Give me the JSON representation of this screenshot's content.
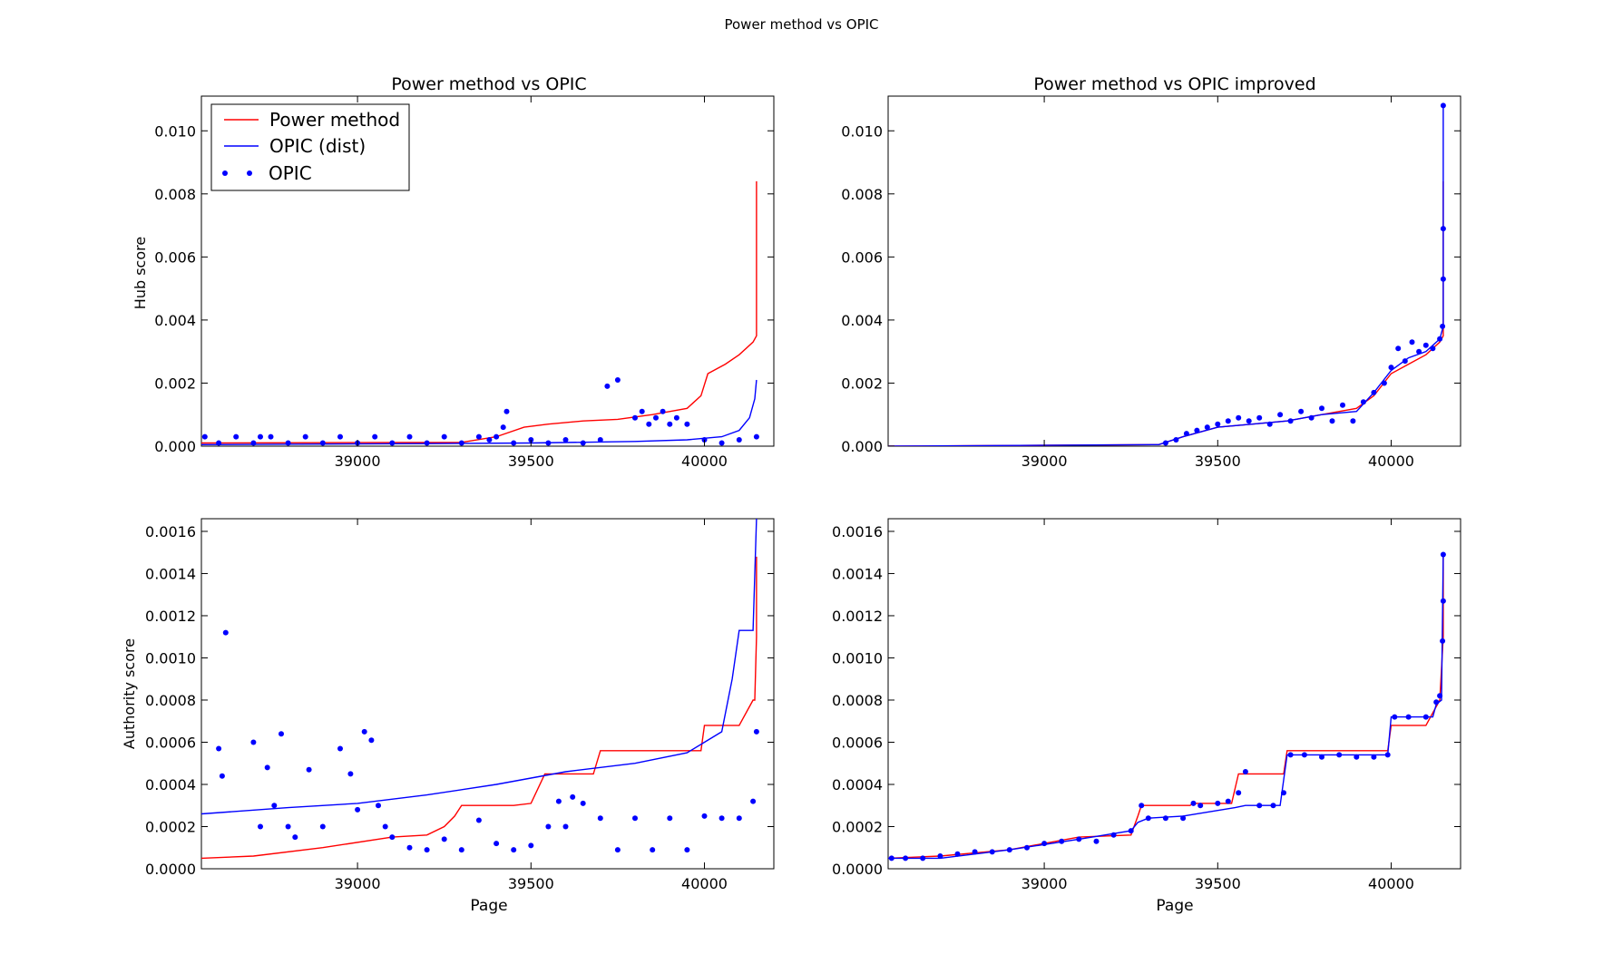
{
  "figure": {
    "suptitle": "Power method vs OPIC"
  },
  "colors": {
    "power_method": "#ff0000",
    "opic": "#0000ff"
  },
  "chart_data": [
    {
      "type": "line",
      "title": "Power method vs OPIC",
      "xlabel": "",
      "ylabel": "Hub score",
      "xlim": [
        38550,
        40200
      ],
      "ylim": [
        0,
        0.0111
      ],
      "xticks": [
        39000,
        39500,
        40000
      ],
      "yticks": [
        0.0,
        0.002,
        0.004,
        0.006,
        0.008,
        0.01
      ],
      "ytick_labels": [
        "0.000",
        "0.002",
        "0.004",
        "0.006",
        "0.008",
        "0.010"
      ],
      "legend": {
        "position": "top-left",
        "entries": [
          "Power method",
          "OPIC (dist)",
          "OPIC"
        ]
      },
      "series": [
        {
          "name": "Power method",
          "style": "line",
          "color": "#ff0000",
          "x": [
            38550,
            39300,
            39400,
            39480,
            39550,
            39650,
            39750,
            39850,
            39950,
            39990,
            40010,
            40060,
            40100,
            40140,
            40150,
            40150
          ],
          "y": [
            0.0001,
            0.00012,
            0.0003,
            0.0006,
            0.0007,
            0.0008,
            0.00085,
            0.001,
            0.0012,
            0.0016,
            0.0023,
            0.0026,
            0.0029,
            0.0033,
            0.0035,
            0.0084
          ]
        },
        {
          "name": "OPIC (dist)",
          "style": "line",
          "color": "#0000ff",
          "x": [
            38550,
            39200,
            39500,
            39800,
            39950,
            40050,
            40100,
            40130,
            40145,
            40150
          ],
          "y": [
            5e-05,
            8e-05,
            0.0001,
            0.00015,
            0.0002,
            0.0003,
            0.0005,
            0.0009,
            0.0015,
            0.0021
          ]
        },
        {
          "name": "OPIC",
          "style": "points",
          "color": "#0000ff",
          "x": [
            38560,
            38600,
            38650,
            38700,
            38720,
            38750,
            38800,
            38850,
            38900,
            38950,
            39000,
            39050,
            39100,
            39150,
            39200,
            39250,
            39300,
            39350,
            39380,
            39400,
            39420,
            39430,
            39450,
            39500,
            39550,
            39600,
            39650,
            39700,
            39720,
            39750,
            39800,
            39820,
            39840,
            39860,
            39880,
            39900,
            39920,
            39950,
            40000,
            40050,
            40100,
            40150
          ],
          "y": [
            0.0003,
            0.0001,
            0.0003,
            0.0001,
            0.0003,
            0.0003,
            0.0001,
            0.0003,
            0.0001,
            0.0003,
            0.0001,
            0.0003,
            0.0001,
            0.0003,
            0.0001,
            0.0003,
            0.0001,
            0.0003,
            0.0002,
            0.0003,
            0.0006,
            0.0011,
            0.0001,
            0.0002,
            0.0001,
            0.0002,
            0.0001,
            0.0002,
            0.0019,
            0.0021,
            0.0009,
            0.0011,
            0.0007,
            0.0009,
            0.0011,
            0.0007,
            0.0009,
            0.0007,
            0.0002,
            0.0001,
            0.0002,
            0.0003
          ]
        }
      ]
    },
    {
      "type": "line",
      "title": "Power method vs OPIC improved",
      "xlabel": "",
      "ylabel": "",
      "xlim": [
        38550,
        40200
      ],
      "ylim": [
        0,
        0.0111
      ],
      "xticks": [
        39000,
        39500,
        40000
      ],
      "yticks": [
        0.0,
        0.002,
        0.004,
        0.006,
        0.008,
        0.01
      ],
      "ytick_labels": [
        "0.000",
        "0.002",
        "0.004",
        "0.006",
        "0.008",
        "0.010"
      ],
      "series": [
        {
          "name": "Power method",
          "style": "line",
          "color": "#ff0000",
          "x": [
            38550,
            39330,
            39400,
            39500,
            39600,
            39700,
            39800,
            39900,
            39950,
            40000,
            40050,
            40100,
            40140,
            40150,
            40150
          ],
          "y": [
            0.0,
            5e-05,
            0.0003,
            0.0006,
            0.0007,
            0.0008,
            0.001,
            0.0012,
            0.0016,
            0.0023,
            0.0026,
            0.0029,
            0.0033,
            0.0035,
            0.0084
          ]
        },
        {
          "name": "OPIC (dist)",
          "style": "line",
          "color": "#0000ff",
          "x": [
            38550,
            39330,
            39400,
            39500,
            39600,
            39700,
            39800,
            39900,
            39950,
            40000,
            40050,
            40100,
            40140,
            40150,
            40150
          ],
          "y": [
            0.0,
            5e-05,
            0.0003,
            0.0006,
            0.0007,
            0.0008,
            0.001,
            0.0011,
            0.0017,
            0.0024,
            0.0028,
            0.003,
            0.0034,
            0.0038,
            0.0108
          ]
        },
        {
          "name": "OPIC",
          "style": "points",
          "color": "#0000ff",
          "x": [
            39350,
            39380,
            39410,
            39440,
            39470,
            39500,
            39530,
            39560,
            39590,
            39620,
            39650,
            39680,
            39710,
            39740,
            39770,
            39800,
            39830,
            39860,
            39890,
            39920,
            39950,
            39980,
            40000,
            40020,
            40040,
            40060,
            40080,
            40100,
            40120,
            40140,
            40148,
            40150,
            40150,
            40150
          ],
          "y": [
            0.0001,
            0.0002,
            0.0004,
            0.0005,
            0.0006,
            0.0007,
            0.0008,
            0.0009,
            0.0008,
            0.0009,
            0.0007,
            0.001,
            0.0008,
            0.0011,
            0.0009,
            0.0012,
            0.0008,
            0.0013,
            0.0008,
            0.0014,
            0.0017,
            0.002,
            0.0025,
            0.0031,
            0.0027,
            0.0033,
            0.003,
            0.0032,
            0.0031,
            0.0034,
            0.0038,
            0.0053,
            0.0069,
            0.0108
          ]
        }
      ]
    },
    {
      "type": "line",
      "title": "",
      "xlabel": "Page",
      "ylabel": "Authority score",
      "xlim": [
        38550,
        40200
      ],
      "ylim": [
        0,
        0.00166
      ],
      "xticks": [
        39000,
        39500,
        40000
      ],
      "yticks": [
        0.0,
        0.0002,
        0.0004,
        0.0006,
        0.0008,
        0.001,
        0.0012,
        0.0014,
        0.0016
      ],
      "ytick_labels": [
        "0.0000",
        "0.0002",
        "0.0004",
        "0.0006",
        "0.0008",
        "0.0010",
        "0.0012",
        "0.0014",
        "0.0016"
      ],
      "series": [
        {
          "name": "Power method",
          "style": "line",
          "color": "#ff0000",
          "x": [
            38550,
            38700,
            38900,
            39100,
            39200,
            39250,
            39280,
            39300,
            39450,
            39500,
            39540,
            39560,
            39680,
            39700,
            39990,
            40000,
            40100,
            40140,
            40145,
            40150,
            40150
          ],
          "y": [
            5e-05,
            6e-05,
            0.0001,
            0.00015,
            0.00016,
            0.0002,
            0.00025,
            0.0003,
            0.0003,
            0.00031,
            0.00045,
            0.00045,
            0.00045,
            0.00056,
            0.00056,
            0.00068,
            0.00068,
            0.0008,
            0.0008,
            0.0011,
            0.00148
          ]
        },
        {
          "name": "OPIC (dist)",
          "style": "line",
          "color": "#0000ff",
          "x": [
            38550,
            38800,
            39000,
            39200,
            39400,
            39600,
            39800,
            39950,
            40050,
            40080,
            40100,
            40140,
            40150
          ],
          "y": [
            0.00026,
            0.00029,
            0.00031,
            0.00035,
            0.0004,
            0.00046,
            0.0005,
            0.00055,
            0.00065,
            0.0009,
            0.00113,
            0.00113,
            0.00166
          ]
        },
        {
          "name": "OPIC",
          "style": "points",
          "color": "#0000ff",
          "x": [
            38600,
            38610,
            38620,
            38700,
            38720,
            38740,
            38760,
            38780,
            38800,
            38820,
            38860,
            38900,
            38950,
            38980,
            39000,
            39020,
            39040,
            39060,
            39080,
            39100,
            39150,
            39200,
            39250,
            39300,
            39350,
            39400,
            39450,
            39500,
            39550,
            39580,
            39600,
            39620,
            39650,
            39700,
            39750,
            39800,
            39850,
            39900,
            39950,
            40000,
            40050,
            40100,
            40140,
            40150
          ],
          "y": [
            0.00057,
            0.00044,
            0.00112,
            0.0006,
            0.0002,
            0.00048,
            0.0003,
            0.00064,
            0.0002,
            0.00015,
            0.00047,
            0.0002,
            0.00057,
            0.00045,
            0.00028,
            0.00065,
            0.00061,
            0.0003,
            0.0002,
            0.00015,
            0.0001,
            9e-05,
            0.00014,
            9e-05,
            0.00023,
            0.00012,
            9e-05,
            0.00011,
            0.0002,
            0.00032,
            0.0002,
            0.00034,
            0.00031,
            0.00024,
            9e-05,
            0.00024,
            9e-05,
            0.00024,
            9e-05,
            0.00025,
            0.00024,
            0.00024,
            0.00032,
            0.00065
          ]
        }
      ]
    },
    {
      "type": "line",
      "title": "",
      "xlabel": "Page",
      "ylabel": "",
      "xlim": [
        38550,
        40200
      ],
      "ylim": [
        0,
        0.00166
      ],
      "xticks": [
        39000,
        39500,
        40000
      ],
      "yticks": [
        0.0,
        0.0002,
        0.0004,
        0.0006,
        0.0008,
        0.001,
        0.0012,
        0.0014,
        0.0016
      ],
      "ytick_labels": [
        "0.0000",
        "0.0002",
        "0.0004",
        "0.0006",
        "0.0008",
        "0.0010",
        "0.0012",
        "0.0014",
        "0.0016"
      ],
      "series": [
        {
          "name": "Power method",
          "style": "line",
          "color": "#ff0000",
          "x": [
            38550,
            38700,
            38900,
            39100,
            39250,
            39270,
            39280,
            39420,
            39430,
            39540,
            39560,
            39690,
            39700,
            39990,
            40000,
            40100,
            40140,
            40150,
            40150
          ],
          "y": [
            5e-05,
            6e-05,
            9e-05,
            0.00015,
            0.00016,
            0.00025,
            0.0003,
            0.0003,
            0.00031,
            0.00031,
            0.00045,
            0.00045,
            0.00056,
            0.00056,
            0.00068,
            0.00068,
            0.0008,
            0.0011,
            0.00148
          ]
        },
        {
          "name": "OPIC (dist)",
          "style": "line",
          "color": "#0000ff",
          "x": [
            38550,
            38700,
            38900,
            39100,
            39250,
            39270,
            39300,
            39400,
            39550,
            39580,
            39680,
            39700,
            39990,
            40000,
            40120,
            40130,
            40145,
            40150
          ],
          "y": [
            5e-05,
            5e-05,
            9e-05,
            0.00014,
            0.00018,
            0.00022,
            0.00024,
            0.00025,
            0.00029,
            0.0003,
            0.0003,
            0.00054,
            0.00054,
            0.00072,
            0.00072,
            0.00078,
            0.0008,
            0.00149
          ]
        },
        {
          "name": "OPIC",
          "style": "points",
          "color": "#0000ff",
          "x": [
            38560,
            38600,
            38650,
            38700,
            38750,
            38800,
            38850,
            38900,
            38950,
            39000,
            39050,
            39100,
            39150,
            39200,
            39250,
            39280,
            39300,
            39350,
            39400,
            39430,
            39450,
            39500,
            39530,
            39560,
            39580,
            39620,
            39660,
            39690,
            39710,
            39750,
            39800,
            39850,
            39900,
            39950,
            39990,
            40010,
            40050,
            40100,
            40130,
            40140,
            40148,
            40150,
            40150
          ],
          "y": [
            5e-05,
            5e-05,
            5e-05,
            6e-05,
            7e-05,
            8e-05,
            8e-05,
            9e-05,
            0.0001,
            0.00012,
            0.00013,
            0.00014,
            0.00013,
            0.00016,
            0.00018,
            0.0003,
            0.00024,
            0.00024,
            0.00024,
            0.00031,
            0.0003,
            0.00031,
            0.00032,
            0.00036,
            0.00046,
            0.0003,
            0.0003,
            0.00036,
            0.00054,
            0.00054,
            0.00053,
            0.00054,
            0.00053,
            0.00053,
            0.00054,
            0.00072,
            0.00072,
            0.00072,
            0.00079,
            0.00082,
            0.00108,
            0.00127,
            0.00149
          ]
        }
      ]
    }
  ]
}
